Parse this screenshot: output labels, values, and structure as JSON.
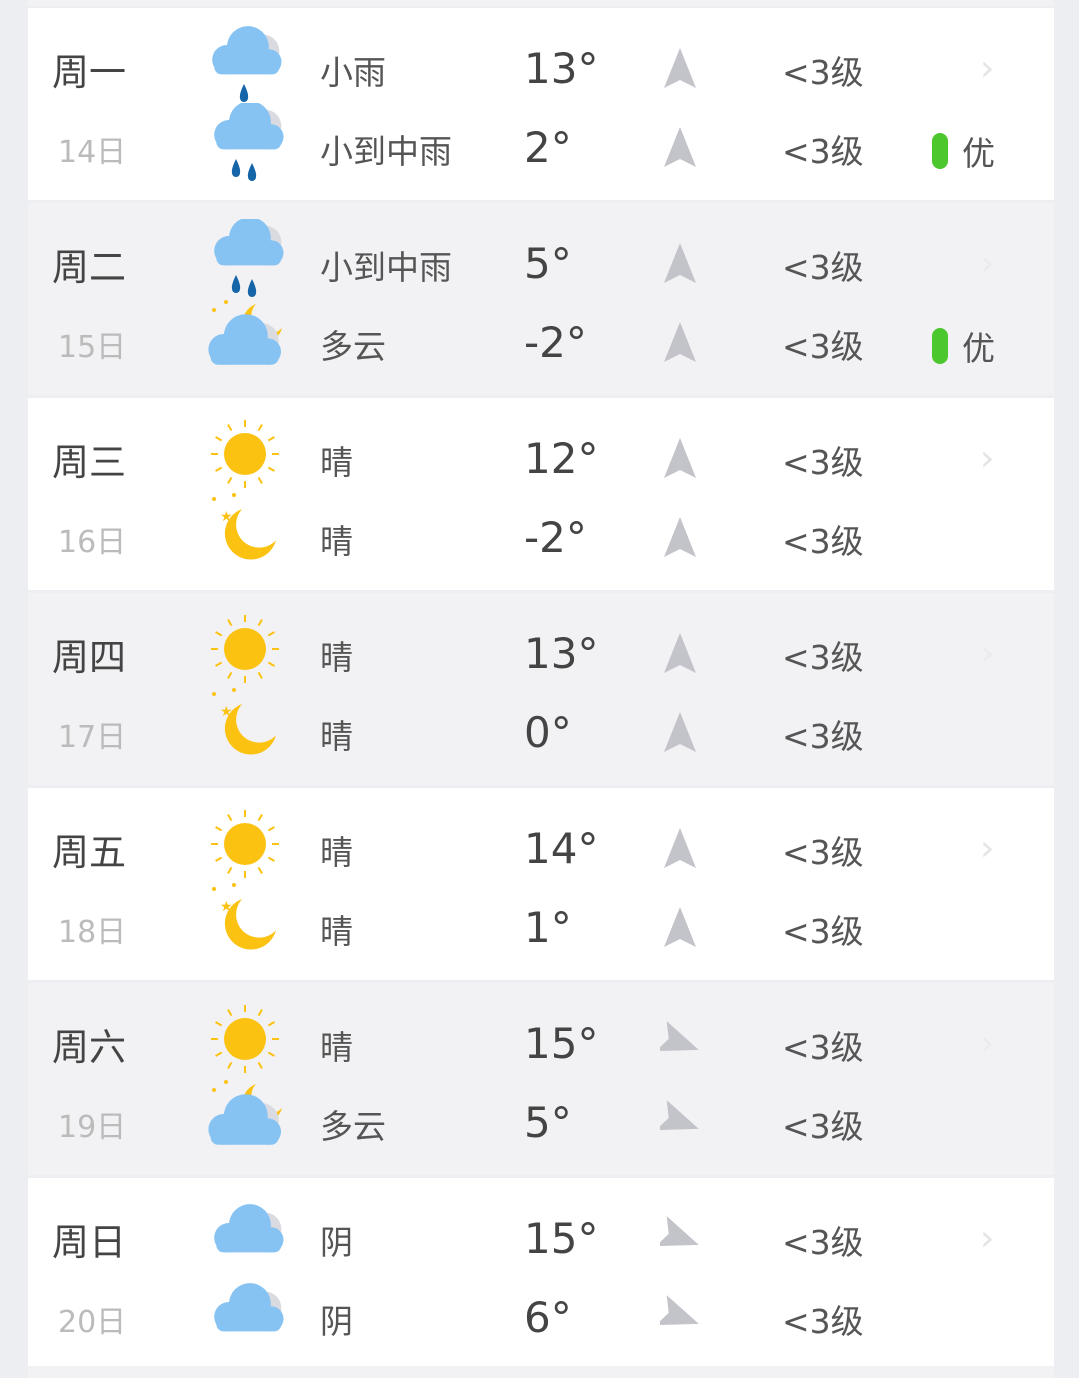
{
  "colors": {
    "cloud": "#86c3f3",
    "rain": "#1565a8",
    "sun": "#fbc211",
    "aqi_good": "#4cc72e",
    "arrow": "#c3c3ca"
  },
  "days": [
    {
      "day": "周一",
      "date": "14日",
      "chevron": "›",
      "top": {
        "icon": "light-rain-icon",
        "desc": "小雨",
        "temp": "13°",
        "wind_dir": 0,
        "wind": "<3级"
      },
      "bottom": {
        "icon": "moderate-rain-icon",
        "desc": "小到中雨",
        "temp": "2°",
        "wind_dir": 0,
        "wind": "<3级"
      },
      "aqi": "优"
    },
    {
      "day": "周二",
      "date": "15日",
      "chevron": "›",
      "top": {
        "icon": "moderate-rain-icon",
        "desc": "小到中雨",
        "temp": "5°",
        "wind_dir": 0,
        "wind": "<3级"
      },
      "bottom": {
        "icon": "cloudy-night-icon",
        "desc": "多云",
        "temp": "-2°",
        "wind_dir": 0,
        "wind": "<3级"
      },
      "aqi": "优"
    },
    {
      "day": "周三",
      "date": "16日",
      "chevron": "›",
      "top": {
        "icon": "sun-icon",
        "desc": "晴",
        "temp": "12°",
        "wind_dir": 0,
        "wind": "<3级"
      },
      "bottom": {
        "icon": "moon-icon",
        "desc": "晴",
        "temp": "-2°",
        "wind_dir": 0,
        "wind": "<3级"
      }
    },
    {
      "day": "周四",
      "date": "17日",
      "chevron": "›",
      "top": {
        "icon": "sun-icon",
        "desc": "晴",
        "temp": "13°",
        "wind_dir": 0,
        "wind": "<3级"
      },
      "bottom": {
        "icon": "moon-icon",
        "desc": "晴",
        "temp": "0°",
        "wind_dir": 0,
        "wind": "<3级"
      }
    },
    {
      "day": "周五",
      "date": "18日",
      "chevron": "›",
      "top": {
        "icon": "sun-icon",
        "desc": "晴",
        "temp": "14°",
        "wind_dir": 0,
        "wind": "<3级"
      },
      "bottom": {
        "icon": "moon-icon",
        "desc": "晴",
        "temp": "1°",
        "wind_dir": 0,
        "wind": "<3级"
      }
    },
    {
      "day": "周六",
      "date": "19日",
      "chevron": "›",
      "top": {
        "icon": "sun-icon",
        "desc": "晴",
        "temp": "15°",
        "wind_dir": 110,
        "wind": "<3级"
      },
      "bottom": {
        "icon": "cloudy-night-icon",
        "desc": "多云",
        "temp": "5°",
        "wind_dir": 110,
        "wind": "<3级"
      }
    },
    {
      "day": "周日",
      "date": "20日",
      "chevron": "›",
      "top": {
        "icon": "overcast-icon",
        "desc": "阴",
        "temp": "15°",
        "wind_dir": 110,
        "wind": "<3级"
      },
      "bottom": {
        "icon": "overcast-icon",
        "desc": "阴",
        "temp": "6°",
        "wind_dir": 110,
        "wind": "<3级"
      }
    }
  ]
}
